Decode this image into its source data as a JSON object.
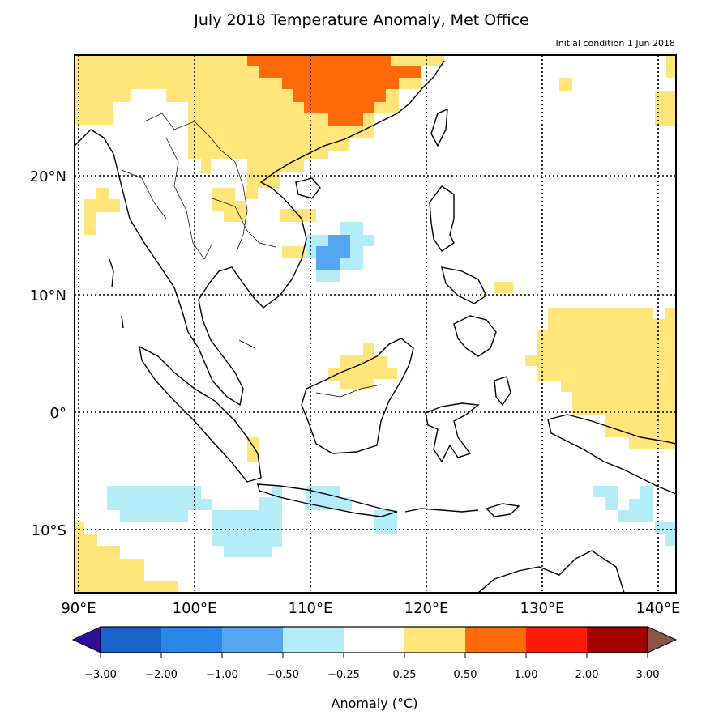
{
  "title": "July 2018 Temperature Anomaly, Met Office",
  "subtitle": "Initial condition 1 Jun 2018",
  "map": {
    "region": "Southeast Asia",
    "lon_range": [
      89.5,
      141.5
    ],
    "lat_range": [
      -15.5,
      30.5
    ],
    "lon_ticks": [
      "90°E",
      "100°E",
      "110°E",
      "120°E",
      "130°E",
      "140°E"
    ],
    "lat_ticks": [
      "20°N",
      "10°N",
      "0°",
      "10°S"
    ]
  },
  "colorbar": {
    "label": "Anomaly (°C)",
    "ticks": [
      "−3.00",
      "−2.00",
      "−1.00",
      "−0.50",
      "−0.25",
      "0.25",
      "0.50",
      "1.00",
      "2.00",
      "3.00"
    ],
    "colors": [
      "#1a63cf",
      "#2a86eb",
      "#53a6ef",
      "#b4ecf8",
      "#ffffff",
      "#ffe57a",
      "#ff6a0a",
      "#ff1b0a",
      "#a30000"
    ],
    "under_color": "#2e0f9a",
    "over_color": "#8a5548"
  },
  "colors": {
    "light_blue": "#b4ecf8",
    "blue": "#53a6ef",
    "yellow": "#ffe57a",
    "orange": "#ff6a0a"
  }
}
